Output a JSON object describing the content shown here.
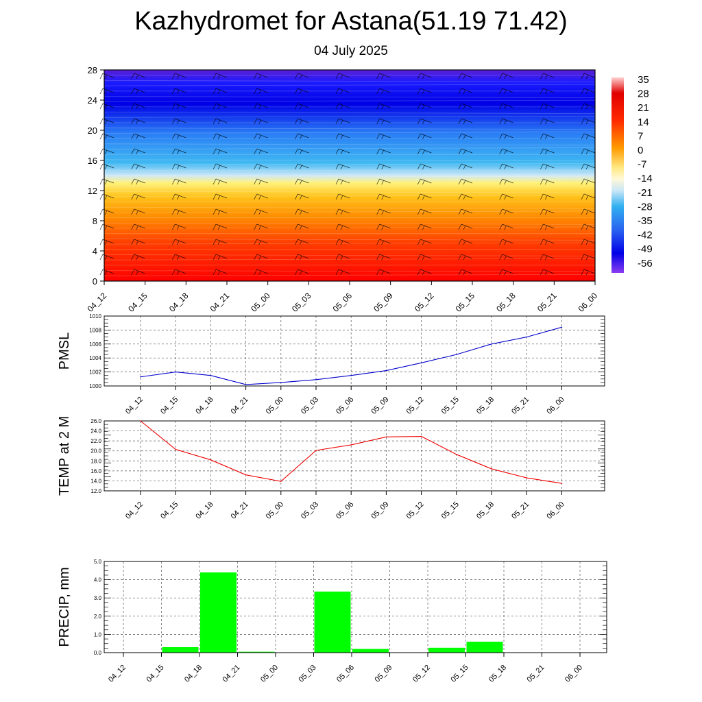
{
  "header": {
    "title": "Kazhydromet for Astana(51.19 71.42)",
    "subtitle": "04 July 2025"
  },
  "chart_data": [
    {
      "type": "heatmap",
      "ylim": [
        0,
        28
      ],
      "yticks": [
        "0",
        "4",
        "8",
        "12",
        "16",
        "20",
        "24",
        "28"
      ],
      "xticks": [
        "04_12",
        "04_15",
        "04_18",
        "04_21",
        "05_00",
        "05_03",
        "05_06",
        "05_09",
        "05_12",
        "05_15",
        "05_18",
        "05_21",
        "06_00"
      ],
      "colorbar_labels": [
        "35",
        "28",
        "21",
        "14",
        "7",
        "0",
        "-7",
        "-14",
        "-21",
        "-28",
        "-35",
        "-42",
        "-49",
        "-56"
      ],
      "colorbar_range": [
        -60,
        38
      ],
      "freezing_level": 13,
      "colors": {
        "cold": "#8a3cf0",
        "cool": "#1e90ff",
        "neutral": "#fffacd",
        "warm": "#ffa500",
        "hot": "#ff0000"
      }
    },
    {
      "type": "line",
      "ylabel": "PMSL",
      "ylim": [
        1000,
        1010
      ],
      "yticks": [
        "1000",
        "1002",
        "1004",
        "1006",
        "1008",
        "1010"
      ],
      "x": [
        "04_12",
        "04_15",
        "04_18",
        "04_21",
        "05_00",
        "05_03",
        "05_06",
        "05_09",
        "05_12",
        "05_15",
        "05_18",
        "05_21",
        "06_00"
      ],
      "values": [
        1001.3,
        1002.0,
        1001.5,
        1000.2,
        1000.5,
        1000.9,
        1001.5,
        1002.2,
        1003.3,
        1004.5,
        1006.0,
        1007.0,
        1008.4
      ],
      "color": "#0000cc"
    },
    {
      "type": "line",
      "ylabel": "TEMP at 2 M",
      "ylim": [
        12,
        26
      ],
      "yticks": [
        "12.0",
        "14.0",
        "16.0",
        "18.0",
        "20.0",
        "22.0",
        "24.0",
        "26.0"
      ],
      "x": [
        "04_12",
        "04_15",
        "04_18",
        "04_21",
        "05_00",
        "05_03",
        "05_06",
        "05_09",
        "05_12",
        "05_15",
        "05_18",
        "05_21",
        "06_00"
      ],
      "values": [
        26.0,
        20.3,
        18.2,
        15.2,
        13.9,
        20.1,
        21.2,
        22.8,
        22.9,
        19.3,
        16.4,
        14.6,
        13.5
      ],
      "color": "#ee0000"
    },
    {
      "type": "bar",
      "ylabel": "PRECIP, mm",
      "ylim": [
        0,
        5
      ],
      "yticks": [
        "0.0",
        "1.0",
        "2.0",
        "3.0",
        "4.0",
        "5.0"
      ],
      "categories": [
        "04_12",
        "04_15",
        "04_18",
        "04_21",
        "05_00",
        "05_03",
        "05_06",
        "05_09",
        "05_12",
        "05_15",
        "05_18",
        "05_21",
        "06_00"
      ],
      "values": [
        0.0,
        0.3,
        4.4,
        0.05,
        0.0,
        3.35,
        0.2,
        0.0,
        0.27,
        0.6,
        0.0,
        0.0,
        0.0
      ],
      "color": "#00ff00"
    }
  ]
}
